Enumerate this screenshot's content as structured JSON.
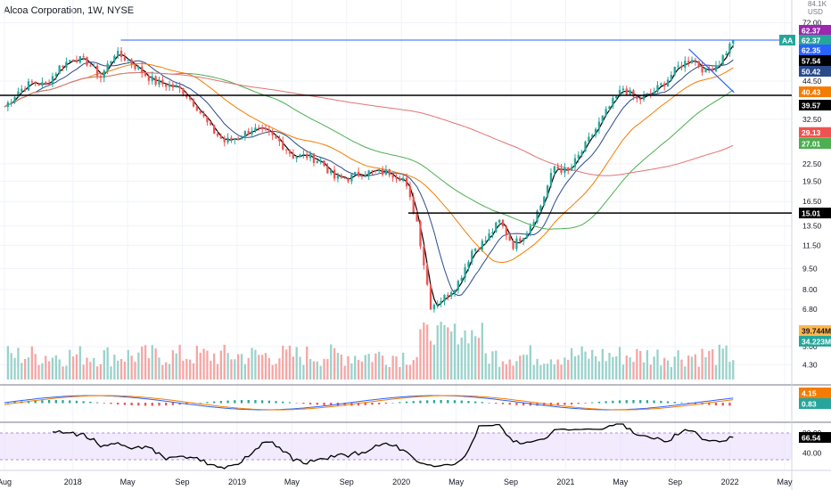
{
  "header": {
    "title": "Alcoa Corporation, 1W, NYSE"
  },
  "axis": {
    "currency": "USD",
    "price_scale_label": "84.1K",
    "price_ticks": [
      "72.00",
      "62.37",
      "57.54",
      "50.42",
      "44.50",
      "39.57",
      "32.50",
      "29.13",
      "27.01",
      "22.50",
      "19.50",
      "16.50",
      "15.01",
      "13.50",
      "11.50",
      "9.50",
      "8.00",
      "6.80",
      "5.00",
      "4.30"
    ],
    "grid_ticks": [
      "72.00",
      "44.50",
      "32.50",
      "22.50",
      "19.50",
      "16.50",
      "13.50",
      "11.50",
      "9.50",
      "8.00",
      "6.80",
      "5.00",
      "4.30"
    ],
    "rsi_ticks": [
      "80.00",
      "40.00"
    ],
    "x_labels": [
      "Aug",
      "2018",
      "May",
      "Sep",
      "2019",
      "May",
      "Sep",
      "2020",
      "May",
      "Sep",
      "2021",
      "May",
      "Sep",
      "2022",
      "May"
    ]
  },
  "badges": {
    "symbol": "AA",
    "last": "62.37",
    "price_top": "62.37",
    "price_ma1": "62.35",
    "price_ma2": "57.54",
    "price_ma3": "50.42",
    "ma_orange": "40.43",
    "level_39": "39.57",
    "ma_red": "29.13",
    "ma_green": "27.01",
    "level_15": "15.01",
    "vol_ma": "39.744M",
    "vol": "34.223M",
    "macd_1": "4.15",
    "macd_2": "0.83",
    "rsi": "66.54"
  },
  "colors": {
    "up": "#26a69a",
    "down": "#ef5350",
    "blue_line": "#2962ff",
    "ma_black": "#000000",
    "ma_blue": "#2a4a8a",
    "ma_orange": "#f57c00",
    "ma_green": "#4caf50",
    "ma_red": "#e57373",
    "rsi_band": "#e9dcfb"
  },
  "chart_data": {
    "type": "candlestick",
    "title": "Alcoa Corporation, 1W, NYSE",
    "price_scale": "log",
    "x": [
      "2017-08",
      "2017-09",
      "2017-10",
      "2017-11",
      "2017-12",
      "2018-01",
      "2018-02",
      "2018-03",
      "2018-04",
      "2018-05",
      "2018-06",
      "2018-07",
      "2018-08",
      "2018-09",
      "2018-10",
      "2018-11",
      "2018-12",
      "2019-01",
      "2019-02",
      "2019-03",
      "2019-04",
      "2019-05",
      "2019-06",
      "2019-07",
      "2019-08",
      "2019-09",
      "2019-10",
      "2019-11",
      "2019-12",
      "2020-01",
      "2020-02",
      "2020-03",
      "2020-04",
      "2020-05",
      "2020-06",
      "2020-07",
      "2020-08",
      "2020-09",
      "2020-10",
      "2020-11",
      "2020-12",
      "2021-01",
      "2021-02",
      "2021-03",
      "2021-04",
      "2021-05",
      "2021-06",
      "2021-07",
      "2021-08",
      "2021-09",
      "2021-10",
      "2021-11",
      "2021-12",
      "2022-01"
    ],
    "close": [
      36,
      41,
      44,
      43,
      50,
      54,
      52,
      46,
      56,
      53,
      48,
      44,
      43,
      41,
      36,
      30,
      27,
      28,
      30,
      29,
      27,
      24,
      24,
      23,
      20,
      20,
      21,
      21,
      21,
      20,
      14,
      7,
      7.5,
      8.5,
      11,
      12,
      14,
      11.5,
      13,
      16,
      22,
      21,
      25,
      30,
      36,
      42,
      38,
      40,
      44,
      50,
      54,
      48,
      52,
      62.37
    ],
    "levels": [
      {
        "name": "horizontal-resistance",
        "value": 62.37
      },
      {
        "name": "support-39-57",
        "value": 39.57
      },
      {
        "name": "support-15-01",
        "value": 15.01
      }
    ],
    "moving_averages": [
      {
        "name": "ma-black",
        "last": 62.35
      },
      {
        "name": "ma-blue",
        "last": 57.54
      },
      {
        "name": "ma-blue-2",
        "last": 50.42
      },
      {
        "name": "ma-orange",
        "last": 40.43
      },
      {
        "name": "ma-red",
        "last": 29.13
      },
      {
        "name": "ma-green",
        "last": 27.01
      }
    ],
    "volume": {
      "last": "34.223M",
      "ma": "39.744M"
    },
    "macd": {
      "values": [
        4.15,
        0.83
      ]
    },
    "rsi": {
      "last": 66.54,
      "bands": [
        40,
        80
      ]
    }
  }
}
